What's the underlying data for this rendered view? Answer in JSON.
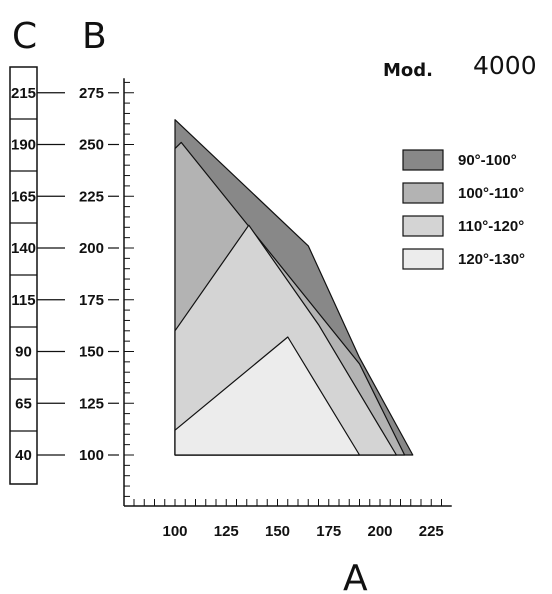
{
  "model_label": "Mod.",
  "model_value": "4000",
  "chart_data": {
    "type": "area",
    "xlabel": "A",
    "ylabel": "B",
    "secondary_ylabel": "C",
    "x_ticks": [
      "100",
      "125",
      "150",
      "175",
      "200",
      "225"
    ],
    "y_ticks": [
      "100",
      "125",
      "150",
      "175",
      "200",
      "225",
      "250",
      "275"
    ],
    "secondary_y_ticks": [
      "40",
      "65",
      "90",
      "115",
      "140",
      "165",
      "190",
      "215"
    ],
    "xlim": [
      75,
      235
    ],
    "ylim": [
      75,
      282
    ],
    "legend_position": "right",
    "series": [
      {
        "name": "90°-100°",
        "color": "#888888",
        "points": [
          [
            100,
            262
          ],
          [
            165,
            201
          ],
          [
            190,
            147
          ],
          [
            216,
            100
          ],
          [
            100,
            100
          ]
        ]
      },
      {
        "name": "100°-110°",
        "color": "#b3b3b3",
        "points": [
          [
            100,
            248
          ],
          [
            103,
            251
          ],
          [
            190,
            144
          ],
          [
            212,
            100
          ],
          [
            100,
            100
          ]
        ]
      },
      {
        "name": "110°-120°",
        "color": "#d4d4d4",
        "points": [
          [
            100,
            160
          ],
          [
            136,
            211
          ],
          [
            170,
            163
          ],
          [
            208,
            100
          ],
          [
            100,
            100
          ]
        ]
      },
      {
        "name": "120°-130°",
        "color": "#ececec",
        "points": [
          [
            100,
            112
          ],
          [
            155,
            157
          ],
          [
            190,
            100
          ],
          [
            100,
            100
          ]
        ]
      }
    ]
  }
}
